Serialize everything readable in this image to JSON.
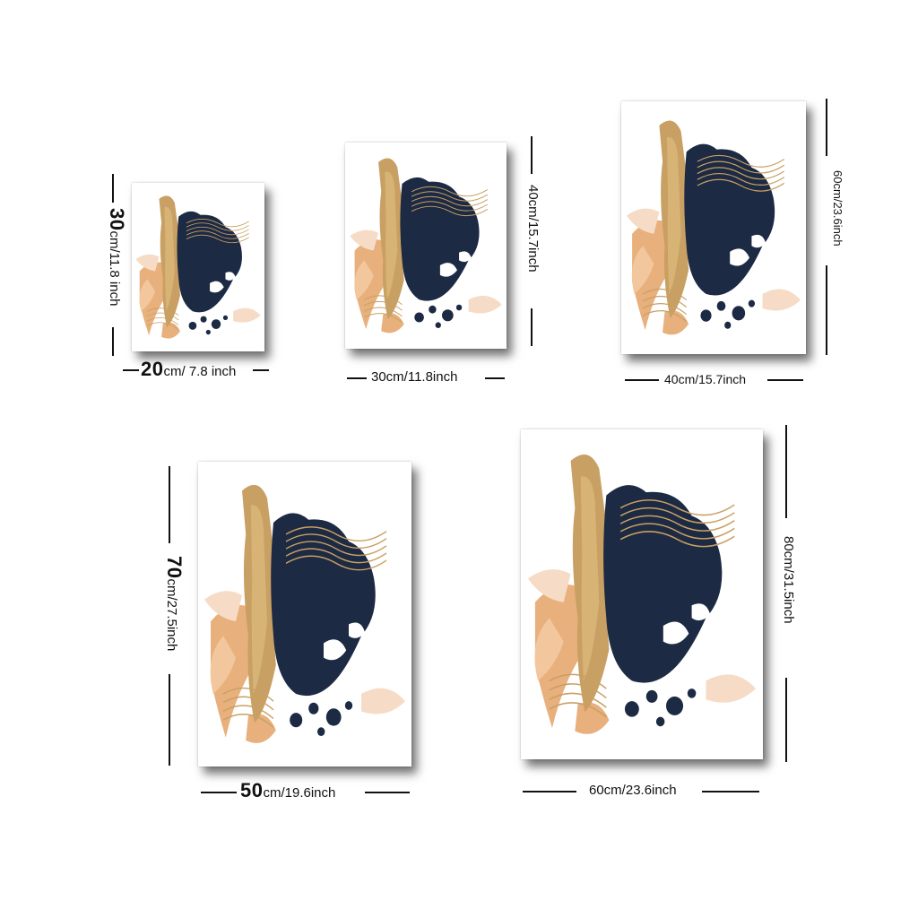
{
  "palette": {
    "navy": "#1c2a44",
    "gold": "#c9a063",
    "peach": "#e8b07c",
    "blush": "#f6dcc6",
    "white": "#ffffff"
  },
  "sizes": [
    {
      "id": "20x30",
      "width_num": "20",
      "width_unit": "cm/ 7.8 inch",
      "height_num": "30",
      "height_unit": "cm/11.8 inch"
    },
    {
      "id": "30x40",
      "width_label": "30cm/11.8inch",
      "height_label": "40cm/15.7inch"
    },
    {
      "id": "40x60",
      "width_label": "40cm/15.7inch",
      "height_label": "60cm/23.6inch"
    },
    {
      "id": "50x70",
      "width_num": "50",
      "width_unit": "cm/19.6inch",
      "height_num": "70",
      "height_unit": "cm/27.5inch"
    },
    {
      "id": "60x80",
      "width_label": "60cm/23.6inch",
      "height_label": "80cm/31.5inch"
    }
  ]
}
